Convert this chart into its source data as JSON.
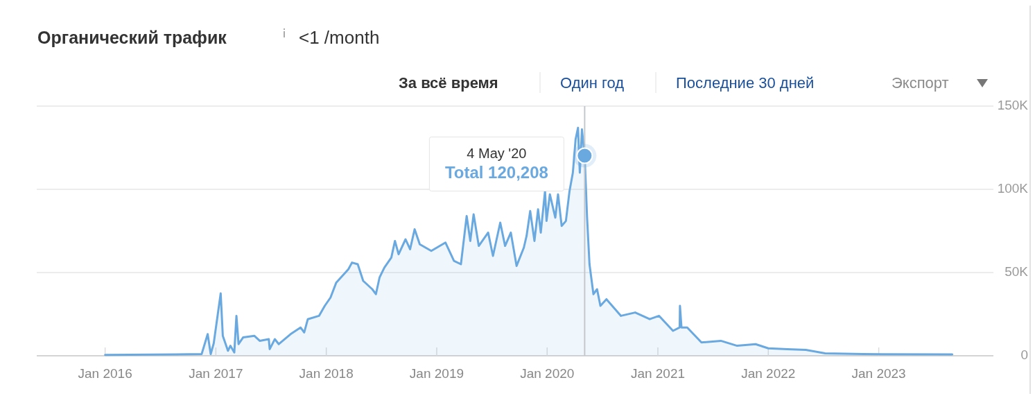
{
  "chart_data": {
    "type": "area",
    "title": "Органический трафик",
    "subtitle": "<1 /month",
    "annotations": [
      "За всё время",
      "Один год",
      "Последние 30 дней",
      "Экспорт",
      {
        "text": "4 May '20\nTotal 120,208",
        "x": "2020-05-04",
        "y": 120208
      }
    ],
    "ref_lines": [
      {
        "axis": "x",
        "value": "2020-05-04",
        "color": "#c4c8cc"
      }
    ],
    "x": [
      "2016-01-01",
      "2016-11-15",
      "2016-12-05",
      "2016-12-15",
      "2016-12-25",
      "2017-01-17",
      "2017-01-24",
      "2017-02-10",
      "2017-02-18",
      "2017-03-03",
      "2017-03-10",
      "2017-03-17",
      "2017-04-01",
      "2017-05-08",
      "2017-05-26",
      "2017-06-25",
      "2017-06-28",
      "2017-07-15",
      "2017-07-28",
      "2017-09-05",
      "2017-10-08",
      "2017-10-20",
      "2017-11-01",
      "2017-12-08",
      "2017-12-27",
      "2018-01-15",
      "2018-02-03",
      "2018-03-15",
      "2018-03-27",
      "2018-04-15",
      "2018-05-03",
      "2018-06-02",
      "2018-06-14",
      "2018-06-26",
      "2018-07-12",
      "2018-08-04",
      "2018-08-16",
      "2018-08-28",
      "2018-09-20",
      "2018-10-05",
      "2018-10-20",
      "2018-11-06",
      "2018-12-14",
      "2019-01-30",
      "2019-02-27",
      "2019-03-22",
      "2019-04-10",
      "2019-04-22",
      "2019-05-03",
      "2019-05-20",
      "2019-06-20",
      "2019-07-06",
      "2019-07-30",
      "2019-08-15",
      "2019-09-03",
      "2019-09-22",
      "2019-10-16",
      "2019-10-25",
      "2019-11-06",
      "2019-11-20",
      "2019-12-02",
      "2019-12-11",
      "2019-12-25",
      "2019-12-30",
      "2020-01-10",
      "2020-01-28",
      "2020-02-06",
      "2020-02-18",
      "2020-03-03",
      "2020-03-15",
      "2020-03-26",
      "2020-04-04",
      "2020-04-12",
      "2020-04-18",
      "2020-04-25",
      "2020-05-04",
      "2020-05-12",
      "2020-05-20",
      "2020-06-02",
      "2020-06-14",
      "2020-06-25",
      "2020-07-15",
      "2020-09-01",
      "2020-10-18",
      "2020-12-05",
      "2021-01-05",
      "2021-02-20",
      "2021-03-14",
      "2021-03-15",
      "2021-03-20",
      "2021-04-08",
      "2021-05-25",
      "2021-07-28",
      "2021-09-20",
      "2021-11-20",
      "2022-01-01",
      "2022-03-05",
      "2022-05-05",
      "2022-07-08",
      "2022-11-10",
      "2023-09-01"
    ],
    "series": [
      {
        "color": "#6aa9e0",
        "values": [
          500,
          1000,
          13000,
          1000,
          7500,
          37500,
          12000,
          3000,
          6000,
          2000,
          24000,
          7000,
          11000,
          12000,
          9000,
          10000,
          4000,
          10000,
          7000,
          13000,
          17000,
          14000,
          22000,
          24000,
          30000,
          35000,
          44000,
          52000,
          56000,
          55000,
          45000,
          40000,
          37000,
          47000,
          53000,
          59000,
          69000,
          61000,
          70000,
          64000,
          76000,
          67000,
          63000,
          68000,
          57000,
          55000,
          84000,
          69000,
          85000,
          66000,
          74000,
          60000,
          80000,
          66000,
          74000,
          54000,
          65000,
          72000,
          87000,
          69000,
          88000,
          74000,
          99000,
          81000,
          97000,
          83000,
          97000,
          78000,
          81000,
          99000,
          110000,
          130000,
          137000,
          110000,
          136000,
          120208,
          83000,
          55000,
          37000,
          40000,
          30000,
          34000,
          24000,
          26000,
          22000,
          24000,
          15000,
          17000,
          30000,
          17000,
          17000,
          8000,
          9000,
          6000,
          7000,
          4500,
          4000,
          3500,
          1500,
          1000,
          800
        ]
      }
    ],
    "xlim": [
      "2015-05-20",
      "2024-01-15"
    ],
    "xticks": [
      {
        "value": "2016-01-01",
        "label": "Jan 2016"
      },
      {
        "value": "2017-01-01",
        "label": "Jan 2017"
      },
      {
        "value": "2018-01-01",
        "label": "Jan 2018"
      },
      {
        "value": "2019-01-01",
        "label": "Jan 2019"
      },
      {
        "value": "2020-01-01",
        "label": "Jan 2020"
      },
      {
        "value": "2021-01-01",
        "label": "Jan 2021"
      },
      {
        "value": "2022-01-01",
        "label": "Jan 2022"
      },
      {
        "value": "2023-01-01",
        "label": "Jan 2023"
      }
    ],
    "ylim": [
      0,
      150000
    ],
    "yticks": [
      {
        "value": 0,
        "label": "0"
      },
      {
        "value": 50000,
        "label": "50K"
      },
      {
        "value": 100000,
        "label": "100K"
      },
      {
        "value": 150000,
        "label": "150K"
      }
    ],
    "grid": "y"
  }
}
